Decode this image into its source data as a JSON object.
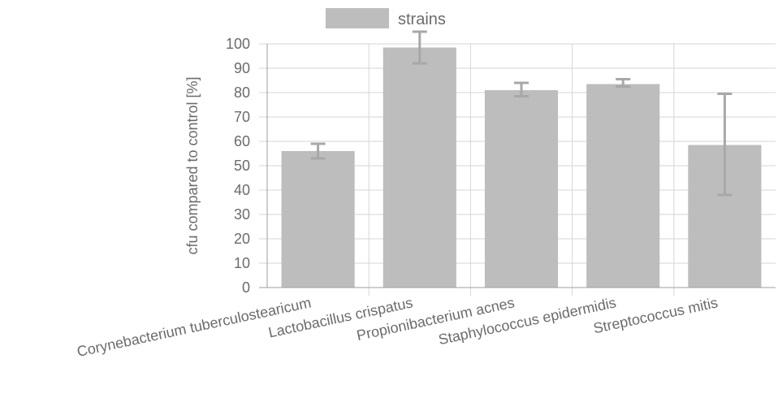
{
  "chart_data": {
    "type": "bar",
    "categories": [
      "Corynebacterium tuberculostearicum",
      "Lactobacillus crispatus",
      "Propionibacterium acnes",
      "Staphylococcus epidermidis",
      "Streptococcus mitis"
    ],
    "series": [
      {
        "name": "strains",
        "values": [
          56,
          98.5,
          81,
          83.5,
          58.5
        ],
        "error_low": [
          53,
          92,
          78.5,
          82.5,
          38
        ],
        "error_high": [
          59,
          105,
          84,
          85.5,
          79.5
        ]
      }
    ],
    "xlabel": "",
    "ylabel": "cfu compared to control [%]",
    "ylim": [
      0,
      100
    ],
    "yticks": [
      0,
      10,
      20,
      30,
      40,
      50,
      60,
      70,
      80,
      90,
      100
    ],
    "grid": true,
    "legend": "top-center",
    "colors": {
      "bar": "#bdbdbd",
      "error_bar": "#a8a8a8",
      "grid": "#d6d6d6",
      "text": "#6b6b6b"
    }
  }
}
